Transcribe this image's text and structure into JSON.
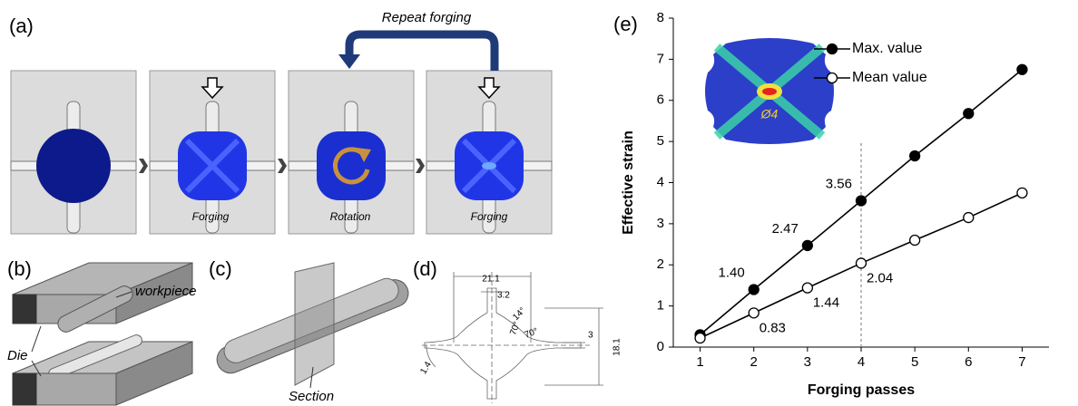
{
  "diagram": {
    "panel_a": {
      "label": "(a)",
      "repeat": "Repeat forging",
      "steps": [
        "Forging",
        "Rotation",
        "Forging"
      ]
    },
    "panel_b": {
      "label": "(b)",
      "workpiece": "workpiece",
      "die": "Die"
    },
    "panel_c": {
      "label": "(c)",
      "section": "Section"
    },
    "panel_d": {
      "label": "(d)",
      "dims": [
        "21.1",
        "3.2",
        "14°",
        "70°",
        "70°",
        "3",
        "18.1",
        "1.4"
      ]
    }
  },
  "chart_data": {
    "type": "line",
    "panel_label": "(e)",
    "xlabel": "Forging passes",
    "ylabel": "Effective strain",
    "x": [
      1,
      2,
      3,
      4,
      5,
      6,
      7
    ],
    "series": [
      {
        "name": "Max. value",
        "color": "#000000",
        "marker_fill": "#000000",
        "values": [
          0.3,
          1.4,
          2.47,
          3.56,
          4.65,
          5.68,
          6.75
        ],
        "value_labels": [
          null,
          "1.40",
          "2.47",
          "3.56",
          null,
          null,
          null
        ]
      },
      {
        "name": "Mean value",
        "color": "#000000",
        "marker_fill": "#ffffff",
        "values": [
          0.22,
          0.83,
          1.44,
          2.04,
          2.6,
          3.15,
          3.75
        ],
        "value_labels": [
          null,
          "0.83",
          "1.44",
          "2.04",
          null,
          null,
          null
        ]
      }
    ],
    "xlim": [
      0.5,
      7.5
    ],
    "xticks": [
      1,
      2,
      3,
      4,
      5,
      6,
      7
    ],
    "ylim": [
      0,
      8
    ],
    "yticks": [
      0,
      1,
      2,
      3,
      4,
      5,
      6,
      7,
      8
    ],
    "grid": false,
    "legend": "upper center",
    "vline": {
      "x": 4,
      "ymax": 5
    },
    "inset_label": "Ø4"
  }
}
